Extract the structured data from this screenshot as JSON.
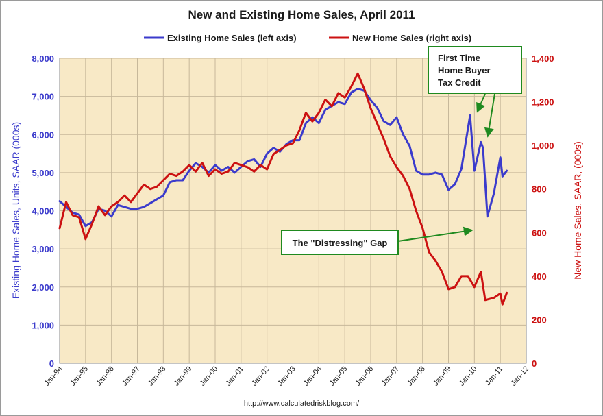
{
  "chart_data": {
    "type": "line",
    "title": "New and Existing Home Sales, April 2011",
    "source": "http://www.calculatedriskblog.com/",
    "xlabel": "",
    "x_ticks": [
      "Jan-94",
      "Jan-95",
      "Jan-96",
      "Jan-97",
      "Jan-98",
      "Jan-99",
      "Jan-00",
      "Jan-01",
      "Jan-02",
      "Jan-03",
      "Jan-04",
      "Jan-05",
      "Jan-06",
      "Jan-07",
      "Jan-08",
      "Jan-09",
      "Jan-10",
      "Jan-11",
      "Jan-12"
    ],
    "xlim": [
      "1994-01",
      "2012-01"
    ],
    "y_left": {
      "label": "Existing Home Sales, Units, SAAR (000s)",
      "ylim": [
        0,
        8000
      ],
      "ticks": [
        0,
        1000,
        2000,
        3000,
        4000,
        5000,
        6000,
        7000,
        8000
      ],
      "tick_labels": [
        "0",
        "1,000",
        "2,000",
        "3,000",
        "4,000",
        "5,000",
        "6,000",
        "7,000",
        "8,000"
      ],
      "color": "#3b3bcc"
    },
    "y_right": {
      "label": "New Home Sales, SAAR, (000s)",
      "ylim": [
        0,
        1400
      ],
      "ticks": [
        0,
        200,
        400,
        600,
        800,
        1000,
        1200,
        1400
      ],
      "tick_labels": [
        "0",
        "200",
        "400",
        "600",
        "800",
        "1,000",
        "1,200",
        "1,400"
      ],
      "color": "#cc1111"
    },
    "legend_position": "top",
    "grid": true,
    "colors": {
      "plot_bg": "#f8e9c6",
      "grid": "#c7b89a",
      "existing": "#3b3bcc",
      "new": "#cc1111",
      "annotation": "#1f8a1f"
    },
    "series": [
      {
        "name": "Existing Home Sales (left axis)",
        "axis": "left",
        "points": [
          [
            "1994-01",
            4250
          ],
          [
            "1994-04",
            4100
          ],
          [
            "1994-07",
            3950
          ],
          [
            "1994-10",
            3900
          ],
          [
            "1995-01",
            3600
          ],
          [
            "1995-04",
            3700
          ],
          [
            "1995-07",
            4050
          ],
          [
            "1995-10",
            4000
          ],
          [
            "1996-01",
            3850
          ],
          [
            "1996-04",
            4150
          ],
          [
            "1996-07",
            4100
          ],
          [
            "1996-10",
            4050
          ],
          [
            "1997-01",
            4050
          ],
          [
            "1997-04",
            4100
          ],
          [
            "1997-07",
            4200
          ],
          [
            "1997-10",
            4300
          ],
          [
            "1998-01",
            4400
          ],
          [
            "1998-04",
            4750
          ],
          [
            "1998-07",
            4800
          ],
          [
            "1998-10",
            4800
          ],
          [
            "1999-01",
            5050
          ],
          [
            "1999-04",
            5250
          ],
          [
            "1999-07",
            5150
          ],
          [
            "1999-10",
            5000
          ],
          [
            "2000-01",
            5200
          ],
          [
            "2000-04",
            5050
          ],
          [
            "2000-07",
            5150
          ],
          [
            "2000-10",
            5000
          ],
          [
            "2001-01",
            5150
          ],
          [
            "2001-04",
            5300
          ],
          [
            "2001-07",
            5350
          ],
          [
            "2001-10",
            5150
          ],
          [
            "2002-01",
            5500
          ],
          [
            "2002-04",
            5650
          ],
          [
            "2002-07",
            5550
          ],
          [
            "2002-10",
            5750
          ],
          [
            "2003-01",
            5850
          ],
          [
            "2003-04",
            5850
          ],
          [
            "2003-07",
            6300
          ],
          [
            "2003-10",
            6450
          ],
          [
            "2004-01",
            6300
          ],
          [
            "2004-04",
            6650
          ],
          [
            "2004-07",
            6750
          ],
          [
            "2004-10",
            6850
          ],
          [
            "2005-01",
            6800
          ],
          [
            "2005-04",
            7100
          ],
          [
            "2005-07",
            7200
          ],
          [
            "2005-10",
            7150
          ],
          [
            "2006-01",
            6900
          ],
          [
            "2006-04",
            6700
          ],
          [
            "2006-07",
            6350
          ],
          [
            "2006-10",
            6250
          ],
          [
            "2007-01",
            6450
          ],
          [
            "2007-04",
            6000
          ],
          [
            "2007-07",
            5700
          ],
          [
            "2007-10",
            5050
          ],
          [
            "2008-01",
            4950
          ],
          [
            "2008-04",
            4950
          ],
          [
            "2008-07",
            5000
          ],
          [
            "2008-10",
            4950
          ],
          [
            "2009-01",
            4550
          ],
          [
            "2009-04",
            4700
          ],
          [
            "2009-07",
            5100
          ],
          [
            "2009-11",
            6500
          ],
          [
            "2010-01",
            5050
          ],
          [
            "2010-04",
            5800
          ],
          [
            "2010-05",
            5650
          ],
          [
            "2010-07",
            3850
          ],
          [
            "2010-10",
            4450
          ],
          [
            "2011-01",
            5400
          ],
          [
            "2011-02",
            4900
          ],
          [
            "2011-04",
            5050
          ]
        ]
      },
      {
        "name": "New Home Sales (right axis)",
        "axis": "right",
        "points": [
          [
            "1994-01",
            620
          ],
          [
            "1994-04",
            740
          ],
          [
            "1994-07",
            680
          ],
          [
            "1994-10",
            670
          ],
          [
            "1995-01",
            570
          ],
          [
            "1995-04",
            640
          ],
          [
            "1995-07",
            720
          ],
          [
            "1995-10",
            680
          ],
          [
            "1996-01",
            720
          ],
          [
            "1996-04",
            740
          ],
          [
            "1996-07",
            770
          ],
          [
            "1996-10",
            740
          ],
          [
            "1997-01",
            780
          ],
          [
            "1997-04",
            820
          ],
          [
            "1997-07",
            800
          ],
          [
            "1997-10",
            810
          ],
          [
            "1998-01",
            840
          ],
          [
            "1998-04",
            870
          ],
          [
            "1998-07",
            860
          ],
          [
            "1998-10",
            880
          ],
          [
            "1999-01",
            910
          ],
          [
            "1999-04",
            880
          ],
          [
            "1999-07",
            920
          ],
          [
            "1999-10",
            860
          ],
          [
            "2000-01",
            890
          ],
          [
            "2000-04",
            870
          ],
          [
            "2000-07",
            880
          ],
          [
            "2000-10",
            920
          ],
          [
            "2001-01",
            910
          ],
          [
            "2001-04",
            900
          ],
          [
            "2001-07",
            880
          ],
          [
            "2001-10",
            910
          ],
          [
            "2002-01",
            890
          ],
          [
            "2002-04",
            960
          ],
          [
            "2002-07",
            980
          ],
          [
            "2002-10",
            1000
          ],
          [
            "2003-01",
            1010
          ],
          [
            "2003-04",
            1070
          ],
          [
            "2003-07",
            1150
          ],
          [
            "2003-10",
            1110
          ],
          [
            "2004-01",
            1150
          ],
          [
            "2004-04",
            1210
          ],
          [
            "2004-07",
            1180
          ],
          [
            "2004-10",
            1240
          ],
          [
            "2005-01",
            1220
          ],
          [
            "2005-04",
            1270
          ],
          [
            "2005-07",
            1330
          ],
          [
            "2005-10",
            1260
          ],
          [
            "2006-01",
            1170
          ],
          [
            "2006-04",
            1100
          ],
          [
            "2006-07",
            1030
          ],
          [
            "2006-10",
            950
          ],
          [
            "2007-01",
            900
          ],
          [
            "2007-04",
            860
          ],
          [
            "2007-07",
            800
          ],
          [
            "2007-10",
            700
          ],
          [
            "2008-01",
            620
          ],
          [
            "2008-04",
            510
          ],
          [
            "2008-07",
            470
          ],
          [
            "2008-10",
            420
          ],
          [
            "2009-01",
            340
          ],
          [
            "2009-04",
            350
          ],
          [
            "2009-07",
            400
          ],
          [
            "2009-10",
            400
          ],
          [
            "2010-01",
            350
          ],
          [
            "2010-04",
            420
          ],
          [
            "2010-06",
            290
          ],
          [
            "2010-10",
            300
          ],
          [
            "2011-01",
            320
          ],
          [
            "2011-02",
            270
          ],
          [
            "2011-04",
            323
          ]
        ]
      }
    ],
    "annotations": [
      {
        "label": "The \"Distressing\" Gap"
      },
      {
        "label_lines": [
          "First Time",
          "Home Buyer",
          "Tax Credit"
        ]
      }
    ]
  }
}
